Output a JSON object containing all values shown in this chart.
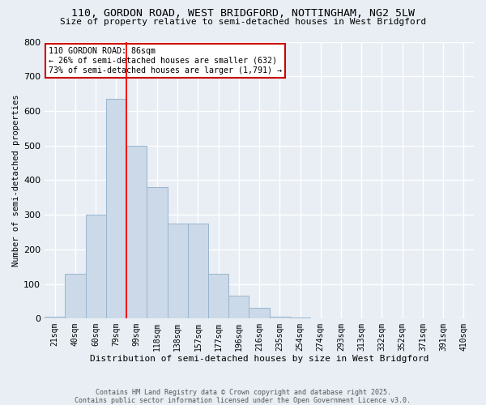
{
  "title_line1": "110, GORDON ROAD, WEST BRIDGFORD, NOTTINGHAM, NG2 5LW",
  "title_line2": "Size of property relative to semi-detached houses in West Bridgford",
  "xlabel": "Distribution of semi-detached houses by size in West Bridgford",
  "ylabel": "Number of semi-detached properties",
  "bin_labels": [
    "21sqm",
    "40sqm",
    "60sqm",
    "79sqm",
    "99sqm",
    "118sqm",
    "138sqm",
    "157sqm",
    "177sqm",
    "196sqm",
    "216sqm",
    "235sqm",
    "254sqm",
    "274sqm",
    "293sqm",
    "313sqm",
    "332sqm",
    "352sqm",
    "371sqm",
    "391sqm",
    "410sqm"
  ],
  "bar_values": [
    5,
    130,
    300,
    635,
    500,
    380,
    275,
    275,
    130,
    65,
    30,
    5,
    2,
    1,
    1,
    1,
    0,
    0,
    0,
    0,
    0
  ],
  "bar_color": "#ccd9e8",
  "bar_edge_color": "#99b5ce",
  "background_color": "#e8eef4",
  "grid_color": "#ffffff",
  "red_line_x": 3.5,
  "annotation_title": "110 GORDON ROAD: 86sqm",
  "annotation_line2": "← 26% of semi-detached houses are smaller (632)",
  "annotation_line3": "73% of semi-detached houses are larger (1,791) →",
  "annotation_box_color": "#ffffff",
  "annotation_box_edge": "#cc0000",
  "footer_line1": "Contains HM Land Registry data © Crown copyright and database right 2025.",
  "footer_line2": "Contains public sector information licensed under the Open Government Licence v3.0.",
  "ylim": [
    0,
    800
  ],
  "yticks": [
    0,
    100,
    200,
    300,
    400,
    500,
    600,
    700,
    800
  ]
}
